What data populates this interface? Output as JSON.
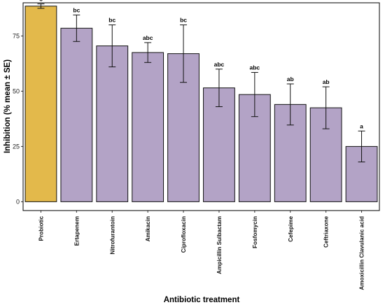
{
  "chart_data": {
    "type": "bar",
    "title": "",
    "xlabel": "Antibiotic treatment",
    "ylabel": "Inhibition (% mean ± SE)",
    "ylim": [
      0,
      90
    ],
    "yticks": [
      0,
      25,
      50,
      75
    ],
    "grid": false,
    "legend": "none",
    "categories": [
      "Probiotic",
      "Ertapenem",
      "Nitrofurantoin",
      "Amikacin",
      "Ciprofloxacin",
      "Ampicillin Sulbactam",
      "Fosfomycin",
      "Cefepime",
      "Ceftriaxone",
      "Amoxicillin Clavulanic acid"
    ],
    "values": [
      88.5,
      78.5,
      70.5,
      67.5,
      67,
      51.5,
      48.5,
      44,
      42.5,
      25
    ],
    "errors": [
      1,
      6,
      9.5,
      4.5,
      13,
      8.5,
      10,
      9.3,
      9.5,
      7
    ],
    "significance": [
      "c",
      "bc",
      "bc",
      "abc",
      "bc",
      "abc",
      "abc",
      "ab",
      "ab",
      "a"
    ],
    "colors": [
      "#e3b94b",
      "#b3a3c6",
      "#b3a3c6",
      "#b3a3c6",
      "#b3a3c6",
      "#b3a3c6",
      "#b3a3c6",
      "#b3a3c6",
      "#b3a3c6",
      "#b3a3c6"
    ]
  }
}
